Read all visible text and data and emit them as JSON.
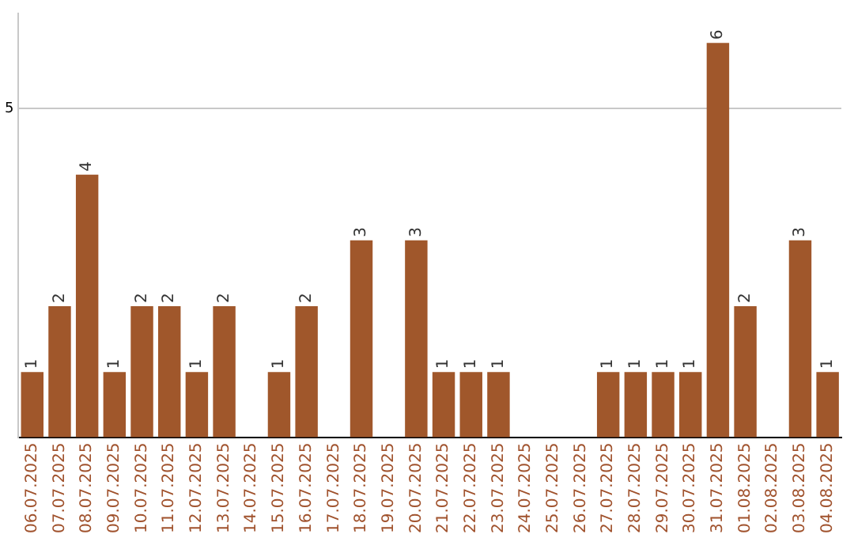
{
  "chart_data": {
    "type": "bar",
    "categories": [
      "06.07.2025",
      "07.07.2025",
      "08.07.2025",
      "09.07.2025",
      "10.07.2025",
      "11.07.2025",
      "12.07.2025",
      "13.07.2025",
      "14.07.2025",
      "15.07.2025",
      "16.07.2025",
      "17.07.2025",
      "18.07.2025",
      "19.07.2025",
      "20.07.2025",
      "21.07.2025",
      "22.07.2025",
      "23.07.2025",
      "24.07.2025",
      "25.07.2025",
      "26.07.2025",
      "27.07.2025",
      "28.07.2025",
      "29.07.2025",
      "30.07.2025",
      "31.07.2025",
      "01.08.2025",
      "02.08.2025",
      "03.08.2025",
      "04.08.2025"
    ],
    "values": [
      1,
      2,
      4,
      1,
      2,
      2,
      1,
      2,
      0,
      1,
      2,
      0,
      3,
      0,
      3,
      1,
      1,
      1,
      0,
      0,
      0,
      1,
      1,
      1,
      1,
      6,
      2,
      0,
      3,
      1
    ],
    "value_labels": [
      "1",
      "2",
      "4",
      "1",
      "2",
      "2",
      "1",
      "2",
      null,
      "1",
      "2",
      null,
      "3",
      null,
      "3",
      "1",
      "1",
      "1",
      null,
      null,
      null,
      "1",
      "1",
      "1",
      "1",
      "6",
      "2",
      null,
      "3",
      "1"
    ],
    "color": "#a0572b",
    "ylim": [
      0,
      6.45
    ],
    "yticks": [
      {
        "value": 0,
        "label": null
      },
      5
    ],
    "grid": "y",
    "legend": false
  }
}
